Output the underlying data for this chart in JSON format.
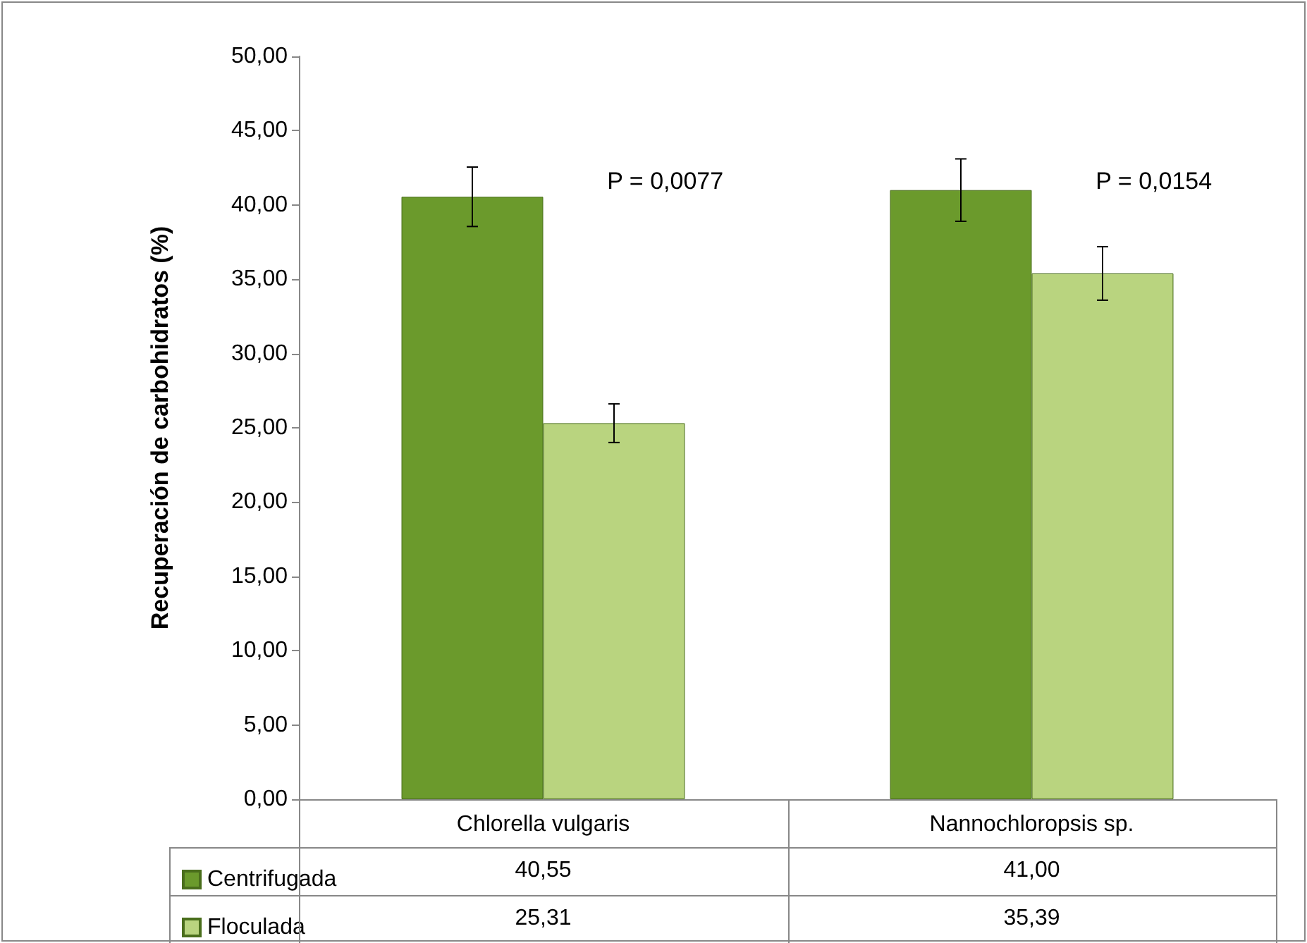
{
  "chart_data": {
    "type": "bar",
    "ylabel": "Recuperación de carbohidratos (%)",
    "categories": [
      "Chlorella vulgaris",
      "Nannochloropsis sp."
    ],
    "series": [
      {
        "name": "Centrifugada",
        "color": "#6b9a2c",
        "values": [
          40.55,
          41.0
        ],
        "value_labels": [
          "40,55",
          "41,00"
        ],
        "errors": [
          2.0,
          2.1
        ]
      },
      {
        "name": "Floculada",
        "color": "#b9d47f",
        "values": [
          25.31,
          35.39
        ],
        "value_labels": [
          "25,31",
          "35,39"
        ],
        "errors": [
          1.3,
          1.8
        ]
      }
    ],
    "ylim": [
      0,
      50
    ],
    "yticks": [
      {
        "value": 0,
        "label": "0,00"
      },
      {
        "value": 5,
        "label": "5,00"
      },
      {
        "value": 10,
        "label": "10,00"
      },
      {
        "value": 15,
        "label": "15,00"
      },
      {
        "value": 20,
        "label": "20,00"
      },
      {
        "value": 25,
        "label": "25,00"
      },
      {
        "value": 30,
        "label": "30,00"
      },
      {
        "value": 35,
        "label": "35,00"
      },
      {
        "value": 40,
        "label": "40,00"
      },
      {
        "value": 45,
        "label": "45,00"
      },
      {
        "value": 50,
        "label": "50,00"
      }
    ],
    "grid": false,
    "legend": "bottom left",
    "annotations": [
      {
        "text": "P = 0,0077",
        "x": "Chlorella vulgaris",
        "y": 40.5
      },
      {
        "text": "P = 0,0154",
        "x": "Nannochloropsis sp.",
        "y": 40.5
      }
    ]
  }
}
